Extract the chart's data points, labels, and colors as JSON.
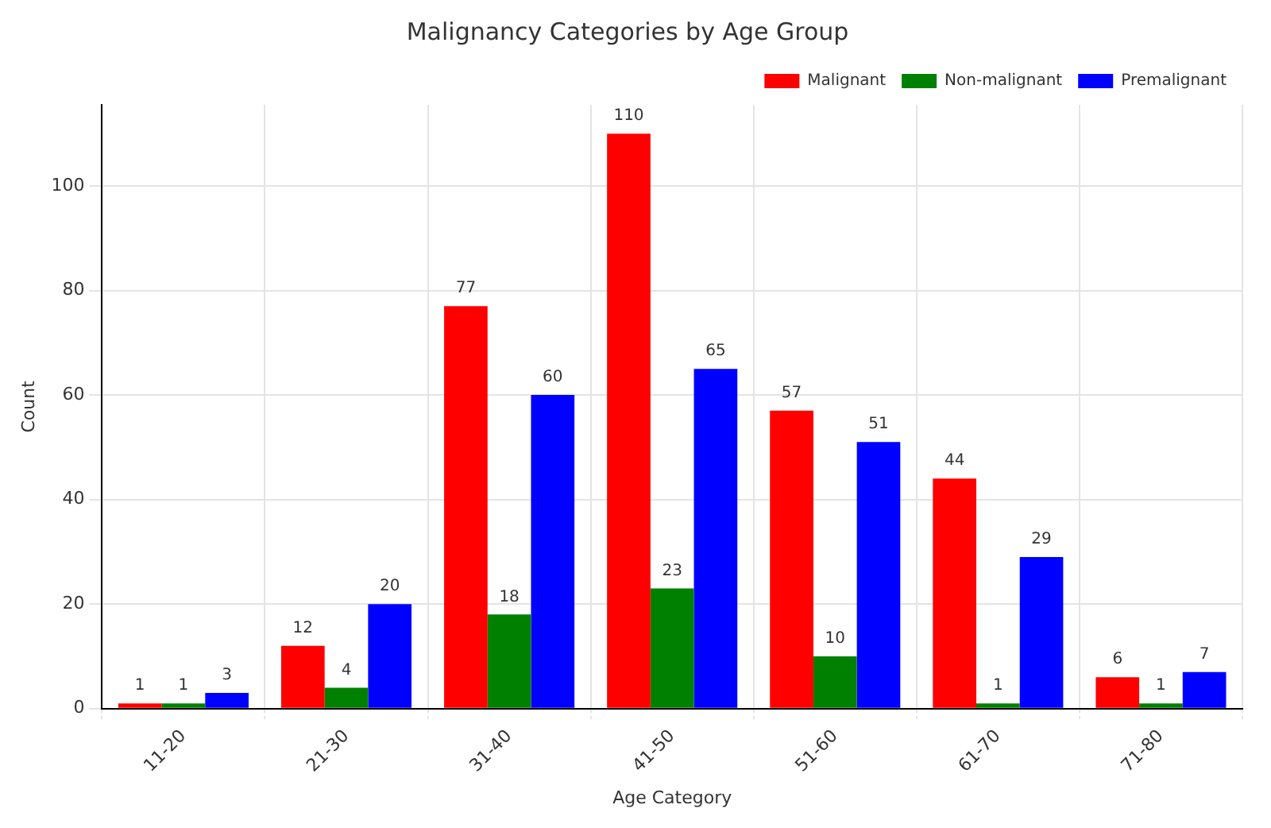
{
  "chart_data": {
    "type": "bar",
    "title": "Malignancy Categories by Age Group",
    "xlabel": "Age Category",
    "ylabel": "Count",
    "categories": [
      "11-20",
      "21-30",
      "31-40",
      "41-50",
      "51-60",
      "61-70",
      "71-80"
    ],
    "series": [
      {
        "name": "Malignant",
        "color": "#ff0000",
        "values": [
          1,
          12,
          77,
          110,
          57,
          44,
          6
        ]
      },
      {
        "name": "Non-malignant",
        "color": "#008000",
        "values": [
          1,
          4,
          18,
          23,
          10,
          1,
          1
        ]
      },
      {
        "name": "Premalignant",
        "color": "#0000ff",
        "values": [
          3,
          20,
          60,
          65,
          51,
          29,
          7
        ]
      }
    ],
    "ylim": [
      0,
      115.5
    ],
    "yticks": [
      0,
      20,
      40,
      60,
      80,
      100
    ],
    "grid": true,
    "legend": "top right",
    "data_labels": true
  }
}
